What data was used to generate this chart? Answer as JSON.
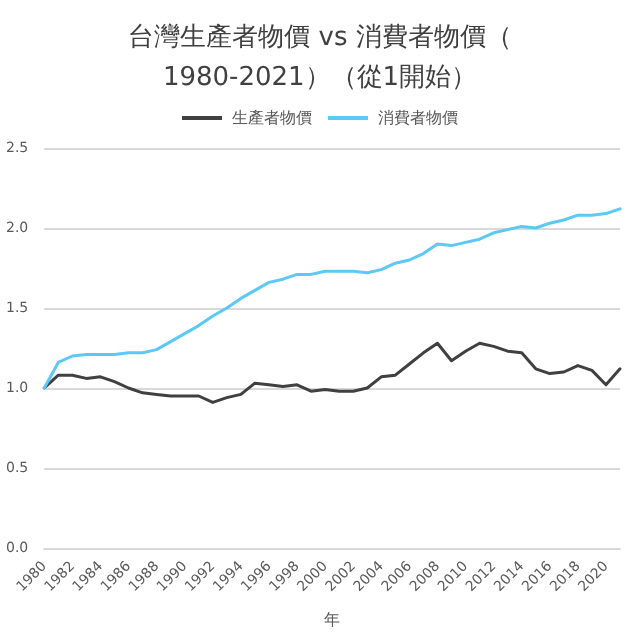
{
  "chart_data": {
    "type": "line",
    "title": "台灣生產者物價 vs 消費者物價（1980-2021）（從1開始）",
    "xlabel": "年",
    "categories": [
      "1980",
      null,
      "1982",
      null,
      "1984",
      null,
      "1986",
      null,
      "1988",
      null,
      "1990",
      null,
      "1992",
      null,
      "1994",
      null,
      "1996",
      null,
      "1998",
      null,
      "2000",
      null,
      "2002",
      null,
      "2004",
      null,
      "2006",
      null,
      "2008",
      null,
      "2010",
      null,
      "2012",
      null,
      "2014",
      null,
      "2016",
      null,
      "2018",
      null,
      "2020",
      null
    ],
    "series": [
      {
        "name": "生產者物價",
        "color": "#404040",
        "values": [
          1.0,
          1.08,
          1.08,
          1.06,
          1.07,
          1.04,
          1.0,
          0.97,
          0.96,
          0.95,
          0.95,
          0.95,
          0.91,
          0.94,
          0.96,
          1.03,
          1.02,
          1.01,
          1.02,
          0.98,
          0.99,
          0.98,
          0.98,
          1.0,
          1.07,
          1.08,
          1.15,
          1.22,
          1.28,
          1.17,
          1.23,
          1.28,
          1.26,
          1.23,
          1.22,
          1.12,
          1.09,
          1.1,
          1.14,
          1.11,
          1.02,
          1.12
        ]
      },
      {
        "name": "消費者物價",
        "color": "#5bc8f5",
        "values": [
          1.0,
          1.16,
          1.2,
          1.21,
          1.21,
          1.21,
          1.22,
          1.22,
          1.24,
          1.29,
          1.34,
          1.39,
          1.45,
          1.5,
          1.56,
          1.61,
          1.66,
          1.68,
          1.71,
          1.71,
          1.73,
          1.73,
          1.73,
          1.72,
          1.74,
          1.78,
          1.8,
          1.84,
          1.9,
          1.89,
          1.91,
          1.93,
          1.97,
          1.99,
          2.01,
          2.0,
          2.03,
          2.05,
          2.08,
          2.08,
          2.09,
          2.12
        ]
      }
    ],
    "ylim": [
      0,
      2.5
    ],
    "yticks": [
      {
        "value": 0,
        "label": "0.0"
      },
      {
        "value": 0.5,
        "label": "0.5"
      },
      {
        "value": 1,
        "label": "1.0"
      },
      {
        "value": 1.5,
        "label": "1.5"
      },
      {
        "value": 2,
        "label": "2.0"
      },
      {
        "value": 2.5,
        "label": "2.5"
      }
    ],
    "grid": "y",
    "legend": "top",
    "marker": "none",
    "line_style": "solid"
  }
}
